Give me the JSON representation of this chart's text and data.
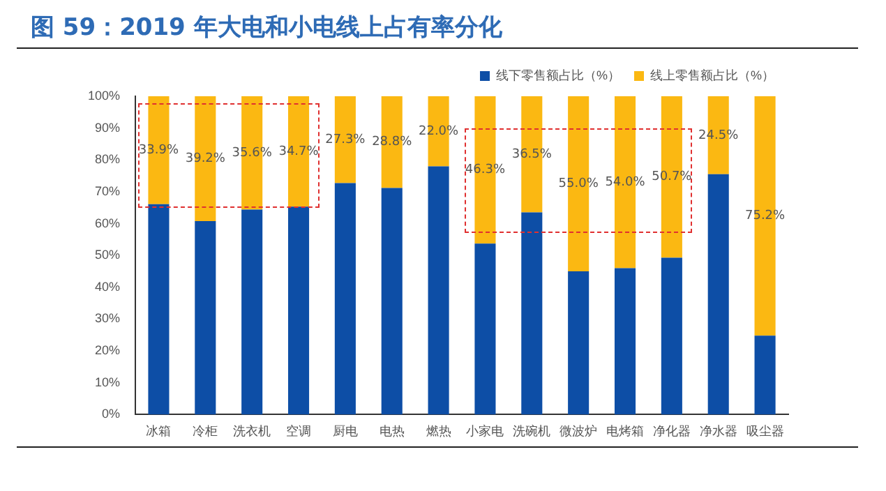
{
  "chart_data": {
    "type": "bar",
    "stacked": true,
    "title": "图 59：2019 年大电和小电线上占有率分化",
    "categories": [
      "冰箱",
      "冷柜",
      "洗衣机",
      "空调",
      "厨电",
      "电热",
      "燃热",
      "小家电",
      "洗碗机",
      "微波炉",
      "电烤箱",
      "净化器",
      "净水器",
      "吸尘器"
    ],
    "series": [
      {
        "name": "线下零售额占比（%）",
        "color": "#0d4ea6",
        "values": [
          66.1,
          60.8,
          64.4,
          65.3,
          72.7,
          71.2,
          78.0,
          53.7,
          63.5,
          45.0,
          46.0,
          49.3,
          75.5,
          24.8
        ]
      },
      {
        "name": "线上零售额占比（%）",
        "color": "#fbb812",
        "values": [
          33.9,
          39.2,
          35.6,
          34.7,
          27.3,
          28.8,
          22.0,
          46.3,
          36.5,
          55.0,
          54.0,
          50.7,
          24.5,
          75.2
        ],
        "value_labels": [
          "33.9%",
          "39.2%",
          "35.6%",
          "34.7%",
          "27.3%",
          "28.8%",
          "22.0%",
          "46.3%",
          "36.5%",
          "55.0%",
          "54.0%",
          "50.7%",
          "24.5%",
          "75.2%"
        ]
      }
    ],
    "ylim": [
      0,
      100
    ],
    "yticks": [
      {
        "value": 0,
        "label": "0%"
      },
      {
        "value": 10,
        "label": "10%"
      },
      {
        "value": 20,
        "label": "20%"
      },
      {
        "value": 30,
        "label": "30%"
      },
      {
        "value": 40,
        "label": "40%"
      },
      {
        "value": 50,
        "label": "50%"
      },
      {
        "value": 60,
        "label": "60%"
      },
      {
        "value": 70,
        "label": "70%"
      },
      {
        "value": 80,
        "label": "80%"
      },
      {
        "value": 90,
        "label": "90%"
      },
      {
        "value": 100,
        "label": "100%"
      }
    ],
    "grid": false,
    "legend": "top right"
  }
}
